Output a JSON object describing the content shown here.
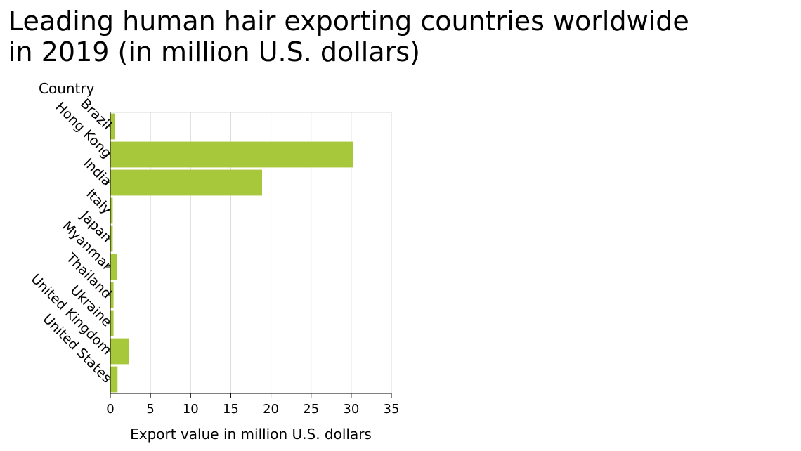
{
  "chart_data": {
    "type": "bar",
    "orientation": "horizontal",
    "title_lines": [
      "Leading human hair exporting countries worldwide",
      "in 2019 (in million U.S. dollars)"
    ],
    "xlabel": "Export value in million U.S. dollars",
    "ylabel": "Country",
    "xlim": [
      0,
      35
    ],
    "xticks": [
      0,
      5,
      10,
      15,
      20,
      25,
      30,
      35
    ],
    "grid": true,
    "legend": "none",
    "bar_color": "#a8c83c",
    "categories": [
      "Brazil",
      "Hong Kong",
      "India",
      "Italy",
      "Japan",
      "Myanmar",
      "Thailand",
      "Ukraine",
      "United Kingdom",
      "United States"
    ],
    "values": [
      0.6,
      30.2,
      18.9,
      0.3,
      0.3,
      0.8,
      0.4,
      0.4,
      2.3,
      0.9
    ]
  }
}
